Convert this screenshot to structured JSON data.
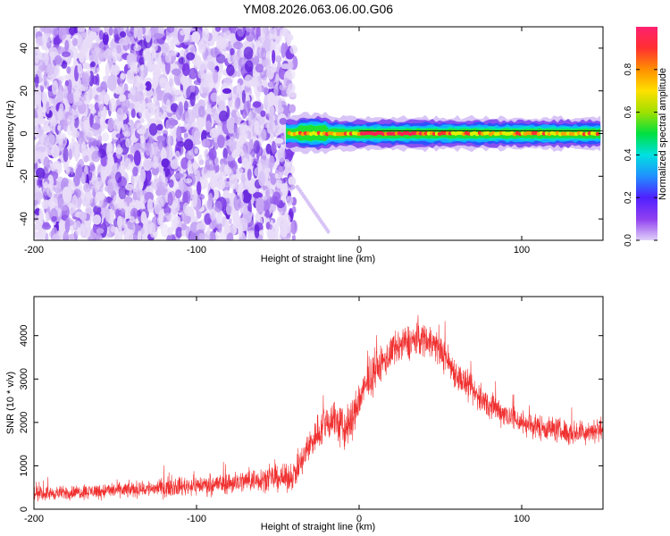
{
  "title": "YM08.2026.063.06.00.G06",
  "chart_data": [
    {
      "type": "heatmap",
      "name": "spectrogram",
      "xlabel": "Height of straight line (km)",
      "ylabel": "Frequency (Hz)",
      "xlim": [
        -200,
        150
      ],
      "ylim": [
        -50,
        50
      ],
      "xticks": [
        -200,
        -100,
        0,
        100
      ],
      "yticks": [
        -40,
        -20,
        0,
        20,
        40
      ],
      "noise_region_x": [
        -200,
        -40
      ],
      "signal_band": {
        "x_start": -45,
        "x_end": 150,
        "freq_center": 0,
        "freq_halfwidth": 4
      },
      "colorbar": {
        "label": "Normalized spectral amplitude",
        "range": [
          0,
          1
        ],
        "ticks": [
          "0.0",
          "0.2",
          "0.4",
          "0.6",
          "0.8"
        ],
        "colors": [
          "#e0d0f8",
          "#9040f0",
          "#5020ff",
          "#2090ff",
          "#00e0e0",
          "#00e040",
          "#a0e000",
          "#ffe000",
          "#ff9000",
          "#ff3030",
          "#ff2070"
        ]
      }
    },
    {
      "type": "line",
      "name": "snr",
      "xlabel": "Height of straight line (km)",
      "ylabel": "SNR (10 * v/v)",
      "xlim": [
        -200,
        150
      ],
      "ylim": [
        0,
        4900
      ],
      "xticks": [
        -200,
        -100,
        0,
        100
      ],
      "yticks": [
        0,
        1000,
        2000,
        3000,
        4000
      ],
      "color": "#f03030",
      "series": [
        {
          "name": "SNR",
          "x": [
            -200,
            -180,
            -160,
            -140,
            -120,
            -100,
            -80,
            -60,
            -50,
            -45,
            -40,
            -35,
            -30,
            -25,
            -20,
            -15,
            -10,
            -5,
            0,
            5,
            10,
            15,
            20,
            25,
            30,
            35,
            40,
            45,
            50,
            55,
            60,
            70,
            80,
            90,
            100,
            110,
            120,
            130,
            140,
            150
          ],
          "values": [
            350,
            380,
            420,
            450,
            500,
            550,
            600,
            700,
            720,
            700,
            800,
            1100,
            1500,
            1800,
            2000,
            2100,
            1800,
            2000,
            2500,
            2900,
            3200,
            3400,
            3600,
            3750,
            3850,
            3900,
            3950,
            3850,
            3650,
            3400,
            3100,
            2700,
            2400,
            2200,
            2000,
            1900,
            1850,
            1750,
            1800,
            1850
          ],
          "noise": [
            250,
            250,
            280,
            300,
            330,
            360,
            400,
            450,
            480,
            480,
            520,
            600,
            650,
            700,
            750,
            800,
            900,
            800,
            700,
            700,
            680,
            650,
            650,
            650,
            650,
            650,
            650,
            630,
            620,
            600,
            580,
            550,
            520,
            500,
            480,
            470,
            460,
            450,
            450,
            450
          ]
        }
      ]
    }
  ]
}
